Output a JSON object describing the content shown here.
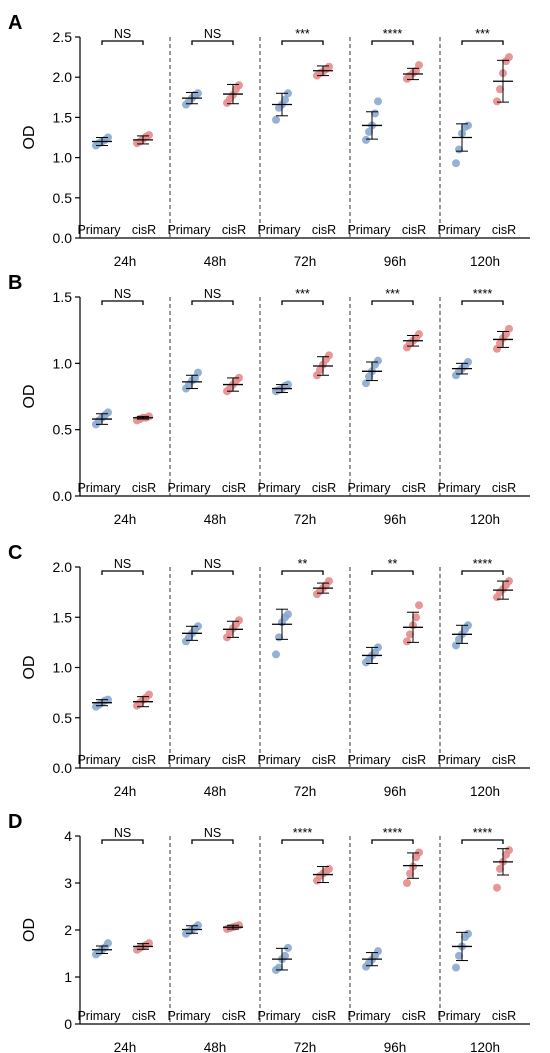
{
  "colors": {
    "primary": "#8aa9cf",
    "cisR": "#e58c8c",
    "axis": "#000000",
    "divider": "#333333"
  },
  "chart_data": [
    {
      "type": "scatter",
      "panel": "A",
      "ylabel": "OD",
      "ylim": [
        0,
        2.5
      ],
      "yticks": [
        0.0,
        0.5,
        1.0,
        1.5,
        2.0,
        2.5
      ],
      "ytick_labels": [
        "0.0",
        "0.5",
        "1.0",
        "1.5",
        "2.0",
        "2.5"
      ],
      "timepoints": [
        "24h",
        "48h",
        "72h",
        "96h",
        "120h"
      ],
      "groups": [
        "Primary",
        "cisR"
      ],
      "series": [
        {
          "name": "Primary",
          "points": [
            [
              1.15,
              1.18,
              1.2,
              1.22,
              1.25
            ],
            [
              1.66,
              1.7,
              1.74,
              1.78,
              1.8
            ],
            [
              1.47,
              1.62,
              1.66,
              1.72,
              1.8
            ],
            [
              1.22,
              1.32,
              1.4,
              1.55,
              1.7
            ],
            [
              0.93,
              1.1,
              1.3,
              1.38,
              1.4
            ]
          ],
          "mean": [
            1.2,
            1.74,
            1.66,
            1.4,
            1.25
          ],
          "error": [
            0.05,
            0.07,
            0.14,
            0.17,
            0.17
          ]
        },
        {
          "name": "cisR",
          "points": [
            [
              1.18,
              1.2,
              1.23,
              1.26,
              1.28
            ],
            [
              1.68,
              1.73,
              1.78,
              1.85,
              1.9
            ],
            [
              2.02,
              2.05,
              2.07,
              2.1,
              2.13
            ],
            [
              1.98,
              2.02,
              2.05,
              2.08,
              2.15
            ],
            [
              1.7,
              1.85,
              2.05,
              2.2,
              2.25
            ]
          ],
          "mean": [
            1.22,
            1.79,
            2.08,
            2.04,
            1.95
          ],
          "error": [
            0.05,
            0.12,
            0.06,
            0.07,
            0.26
          ]
        }
      ],
      "significance": [
        "NS",
        "NS",
        "***",
        "****",
        "***"
      ]
    },
    {
      "type": "scatter",
      "panel": "B",
      "ylabel": "OD",
      "ylim": [
        0,
        1.5
      ],
      "yticks": [
        0.0,
        0.5,
        1.0,
        1.5
      ],
      "ytick_labels": [
        "0.0",
        "0.5",
        "1.0",
        "1.5"
      ],
      "timepoints": [
        "24h",
        "48h",
        "72h",
        "96h",
        "120h"
      ],
      "groups": [
        "Primary",
        "cisR"
      ],
      "series": [
        {
          "name": "Primary",
          "points": [
            [
              0.54,
              0.57,
              0.59,
              0.61,
              0.63
            ],
            [
              0.81,
              0.84,
              0.87,
              0.89,
              0.93
            ],
            [
              0.79,
              0.8,
              0.81,
              0.83,
              0.84
            ],
            [
              0.85,
              0.9,
              0.94,
              0.99,
              1.02
            ],
            [
              0.91,
              0.94,
              0.96,
              0.98,
              1.01
            ]
          ],
          "mean": [
            0.58,
            0.86,
            0.81,
            0.94,
            0.96
          ],
          "error": [
            0.04,
            0.05,
            0.03,
            0.07,
            0.04
          ]
        },
        {
          "name": "cisR",
          "points": [
            [
              0.57,
              0.58,
              0.59,
              0.59,
              0.6
            ],
            [
              0.79,
              0.81,
              0.84,
              0.87,
              0.89
            ],
            [
              0.91,
              0.95,
              0.99,
              1.03,
              1.06
            ],
            [
              1.12,
              1.15,
              1.17,
              1.19,
              1.22
            ],
            [
              1.11,
              1.15,
              1.19,
              1.22,
              1.26
            ]
          ],
          "mean": [
            0.59,
            0.84,
            0.98,
            1.17,
            1.18
          ],
          "error": [
            0.01,
            0.05,
            0.07,
            0.04,
            0.06
          ]
        }
      ],
      "significance": [
        "NS",
        "NS",
        "***",
        "***",
        "****"
      ]
    },
    {
      "type": "scatter",
      "panel": "C",
      "ylabel": "OD",
      "ylim": [
        0,
        2.0
      ],
      "yticks": [
        0.0,
        0.5,
        1.0,
        1.5,
        2.0
      ],
      "ytick_labels": [
        "0.0",
        "0.5",
        "1.0",
        "1.5",
        "2.0"
      ],
      "timepoints": [
        "24h",
        "48h",
        "72h",
        "96h",
        "120h"
      ],
      "groups": [
        "Primary",
        "cisR"
      ],
      "series": [
        {
          "name": "Primary",
          "points": [
            [
              0.61,
              0.63,
              0.65,
              0.67,
              0.68
            ],
            [
              1.26,
              1.3,
              1.34,
              1.38,
              1.41
            ],
            [
              1.13,
              1.3,
              1.45,
              1.5,
              1.53
            ],
            [
              1.05,
              1.08,
              1.12,
              1.15,
              1.2
            ],
            [
              1.22,
              1.28,
              1.33,
              1.38,
              1.42
            ]
          ],
          "mean": [
            0.65,
            1.34,
            1.43,
            1.12,
            1.33
          ],
          "error": [
            0.03,
            0.07,
            0.15,
            0.08,
            0.09
          ]
        },
        {
          "name": "cisR",
          "points": [
            [
              0.62,
              0.65,
              0.68,
              0.7,
              0.73
            ],
            [
              1.3,
              1.35,
              1.39,
              1.43,
              1.47
            ],
            [
              1.73,
              1.76,
              1.79,
              1.82,
              1.86
            ],
            [
              1.26,
              1.33,
              1.42,
              1.5,
              1.62
            ],
            [
              1.7,
              1.75,
              1.78,
              1.82,
              1.86
            ]
          ],
          "mean": [
            0.66,
            1.38,
            1.79,
            1.4,
            1.77
          ],
          "error": [
            0.05,
            0.08,
            0.05,
            0.15,
            0.09
          ]
        }
      ],
      "significance": [
        "NS",
        "NS",
        "**",
        "**",
        "****"
      ]
    },
    {
      "type": "scatter",
      "panel": "D",
      "ylabel": "OD",
      "ylim": [
        0,
        4
      ],
      "yticks": [
        0,
        1,
        2,
        3,
        4
      ],
      "ytick_labels": [
        "0",
        "1",
        "2",
        "3",
        "4"
      ],
      "timepoints": [
        "24h",
        "48h",
        "72h",
        "96h",
        "120h"
      ],
      "groups": [
        "Primary",
        "cisR"
      ],
      "series": [
        {
          "name": "Primary",
          "points": [
            [
              1.48,
              1.53,
              1.58,
              1.63,
              1.72
            ],
            [
              1.92,
              1.97,
              2.01,
              2.05,
              2.1
            ],
            [
              1.15,
              1.2,
              1.38,
              1.45,
              1.62
            ],
            [
              1.22,
              1.3,
              1.37,
              1.45,
              1.55
            ],
            [
              1.2,
              1.45,
              1.65,
              1.85,
              1.92
            ]
          ],
          "mean": [
            1.58,
            2.01,
            1.38,
            1.38,
            1.65
          ],
          "error": [
            0.08,
            0.08,
            0.23,
            0.14,
            0.3
          ]
        },
        {
          "name": "cisR",
          "points": [
            [
              1.58,
              1.62,
              1.65,
              1.68,
              1.72
            ],
            [
              2.02,
              2.04,
              2.06,
              2.08,
              2.1
            ],
            [
              3.05,
              3.15,
              3.2,
              3.25,
              3.3
            ],
            [
              3.0,
              3.2,
              3.35,
              3.55,
              3.65
            ],
            [
              2.9,
              3.3,
              3.45,
              3.6,
              3.7
            ]
          ],
          "mean": [
            1.65,
            2.06,
            3.18,
            3.37,
            3.45
          ],
          "error": [
            0.06,
            0.04,
            0.17,
            0.27,
            0.28
          ]
        }
      ],
      "significance": [
        "NS",
        "NS",
        "****",
        "****",
        "****"
      ]
    }
  ]
}
